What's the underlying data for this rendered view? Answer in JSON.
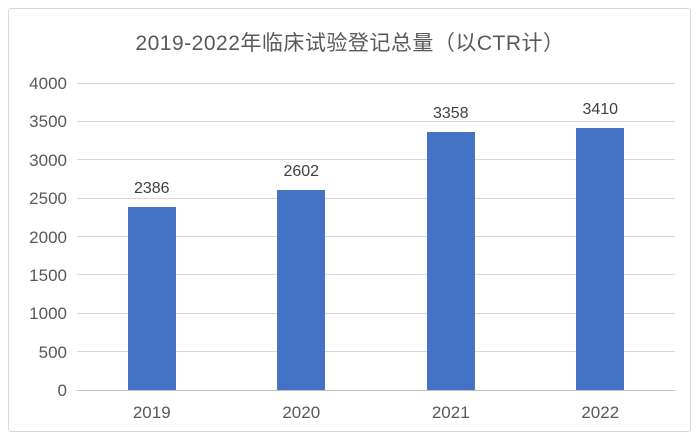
{
  "chart_data": {
    "type": "bar",
    "title": "2019-2022年临床试验登记总量（以CTR计）",
    "categories": [
      "2019",
      "2020",
      "2021",
      "2022"
    ],
    "values": [
      2386,
      2602,
      3358,
      3410
    ],
    "data_labels": [
      "2386",
      "2602",
      "3358",
      "3410"
    ],
    "xlabel": "",
    "ylabel": "",
    "ylim": [
      0,
      4000
    ],
    "yticks": [
      0,
      500,
      1000,
      1500,
      2000,
      2500,
      3000,
      3500,
      4000
    ],
    "grid": true,
    "legend": "none"
  },
  "colors": {
    "bar_fill": "#4472C4",
    "gridline": "#D9D9D9",
    "axis_line": "#BFBFBF",
    "title_text": "#595959",
    "axis_text": "#595959",
    "data_label_text": "#404040",
    "frame_border": "#D9D9D9",
    "background": "#FFFFFF"
  }
}
